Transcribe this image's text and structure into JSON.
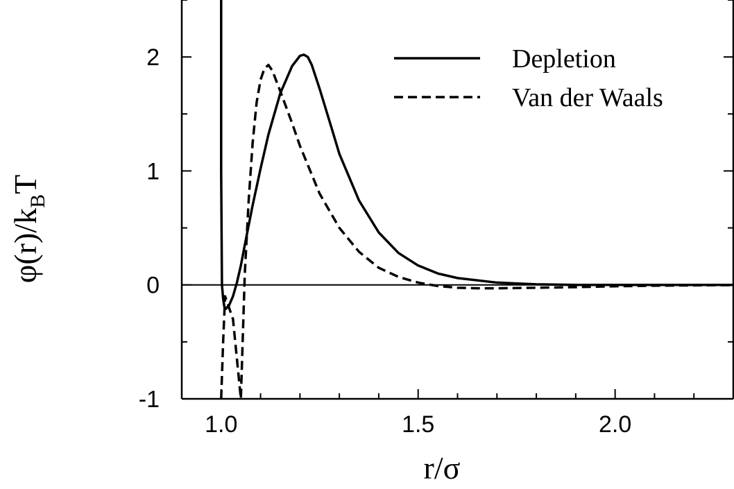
{
  "chart_data": {
    "type": "line",
    "title": "",
    "xlabel": "r/σ",
    "ylabel_main": "φ(r)/k",
    "ylabel_subscript": "B",
    "ylabel_tail": "T",
    "xlim": [
      0.9,
      2.3
    ],
    "ylim": [
      -1,
      2.5
    ],
    "x_ticks": [
      1.0,
      1.5,
      2.0
    ],
    "x_tick_labels": [
      "1.0",
      "1.5",
      "2.0"
    ],
    "y_ticks": [
      -1,
      0,
      1,
      2
    ],
    "y_tick_labels": [
      "-1",
      "0",
      "1",
      "2"
    ],
    "zero_line": true,
    "grid": false,
    "legend_position": "top-right",
    "colors": {
      "axis": "#000000",
      "series": "#000000"
    },
    "series": [
      {
        "name": "Depletion",
        "style": "solid",
        "x": [
          1.0,
          1.0,
          1.002,
          1.005,
          1.008,
          1.012,
          1.02,
          1.03,
          1.04,
          1.05,
          1.06,
          1.08,
          1.1,
          1.12,
          1.15,
          1.18,
          1.2,
          1.21,
          1.22,
          1.23,
          1.25,
          1.28,
          1.3,
          1.35,
          1.4,
          1.45,
          1.5,
          1.55,
          1.6,
          1.7,
          1.8,
          1.9,
          2.0,
          2.1,
          2.2,
          2.3
        ],
        "y": [
          2.5,
          1.0,
          0.0,
          -0.12,
          -0.19,
          -0.21,
          -0.18,
          -0.1,
          0.02,
          0.17,
          0.35,
          0.7,
          1.02,
          1.32,
          1.68,
          1.92,
          2.01,
          2.02,
          2.0,
          1.93,
          1.72,
          1.38,
          1.15,
          0.74,
          0.46,
          0.28,
          0.17,
          0.1,
          0.06,
          0.02,
          0.005,
          0.0,
          0.0,
          0.0,
          0.0,
          0.0
        ]
      },
      {
        "name": "Van der Waals",
        "style": "dashed",
        "x": [
          1.0,
          1.005,
          1.01,
          1.03,
          1.05,
          1.06,
          1.07,
          1.08,
          1.09,
          1.1,
          1.11,
          1.12,
          1.13,
          1.15,
          1.18,
          1.2,
          1.25,
          1.3,
          1.35,
          1.4,
          1.45,
          1.5,
          1.55,
          1.6,
          1.65,
          1.7,
          1.8,
          1.9,
          2.0,
          2.1,
          2.2,
          2.3
        ],
        "y": [
          -1.0,
          -0.5,
          -0.1,
          -0.3,
          -1.0,
          0.1,
          0.75,
          1.25,
          1.6,
          1.8,
          1.9,
          1.93,
          1.88,
          1.7,
          1.42,
          1.22,
          0.8,
          0.5,
          0.29,
          0.15,
          0.07,
          0.02,
          -0.01,
          -0.025,
          -0.03,
          -0.03,
          -0.025,
          -0.02,
          -0.012,
          -0.007,
          -0.004,
          -0.002
        ]
      }
    ]
  }
}
